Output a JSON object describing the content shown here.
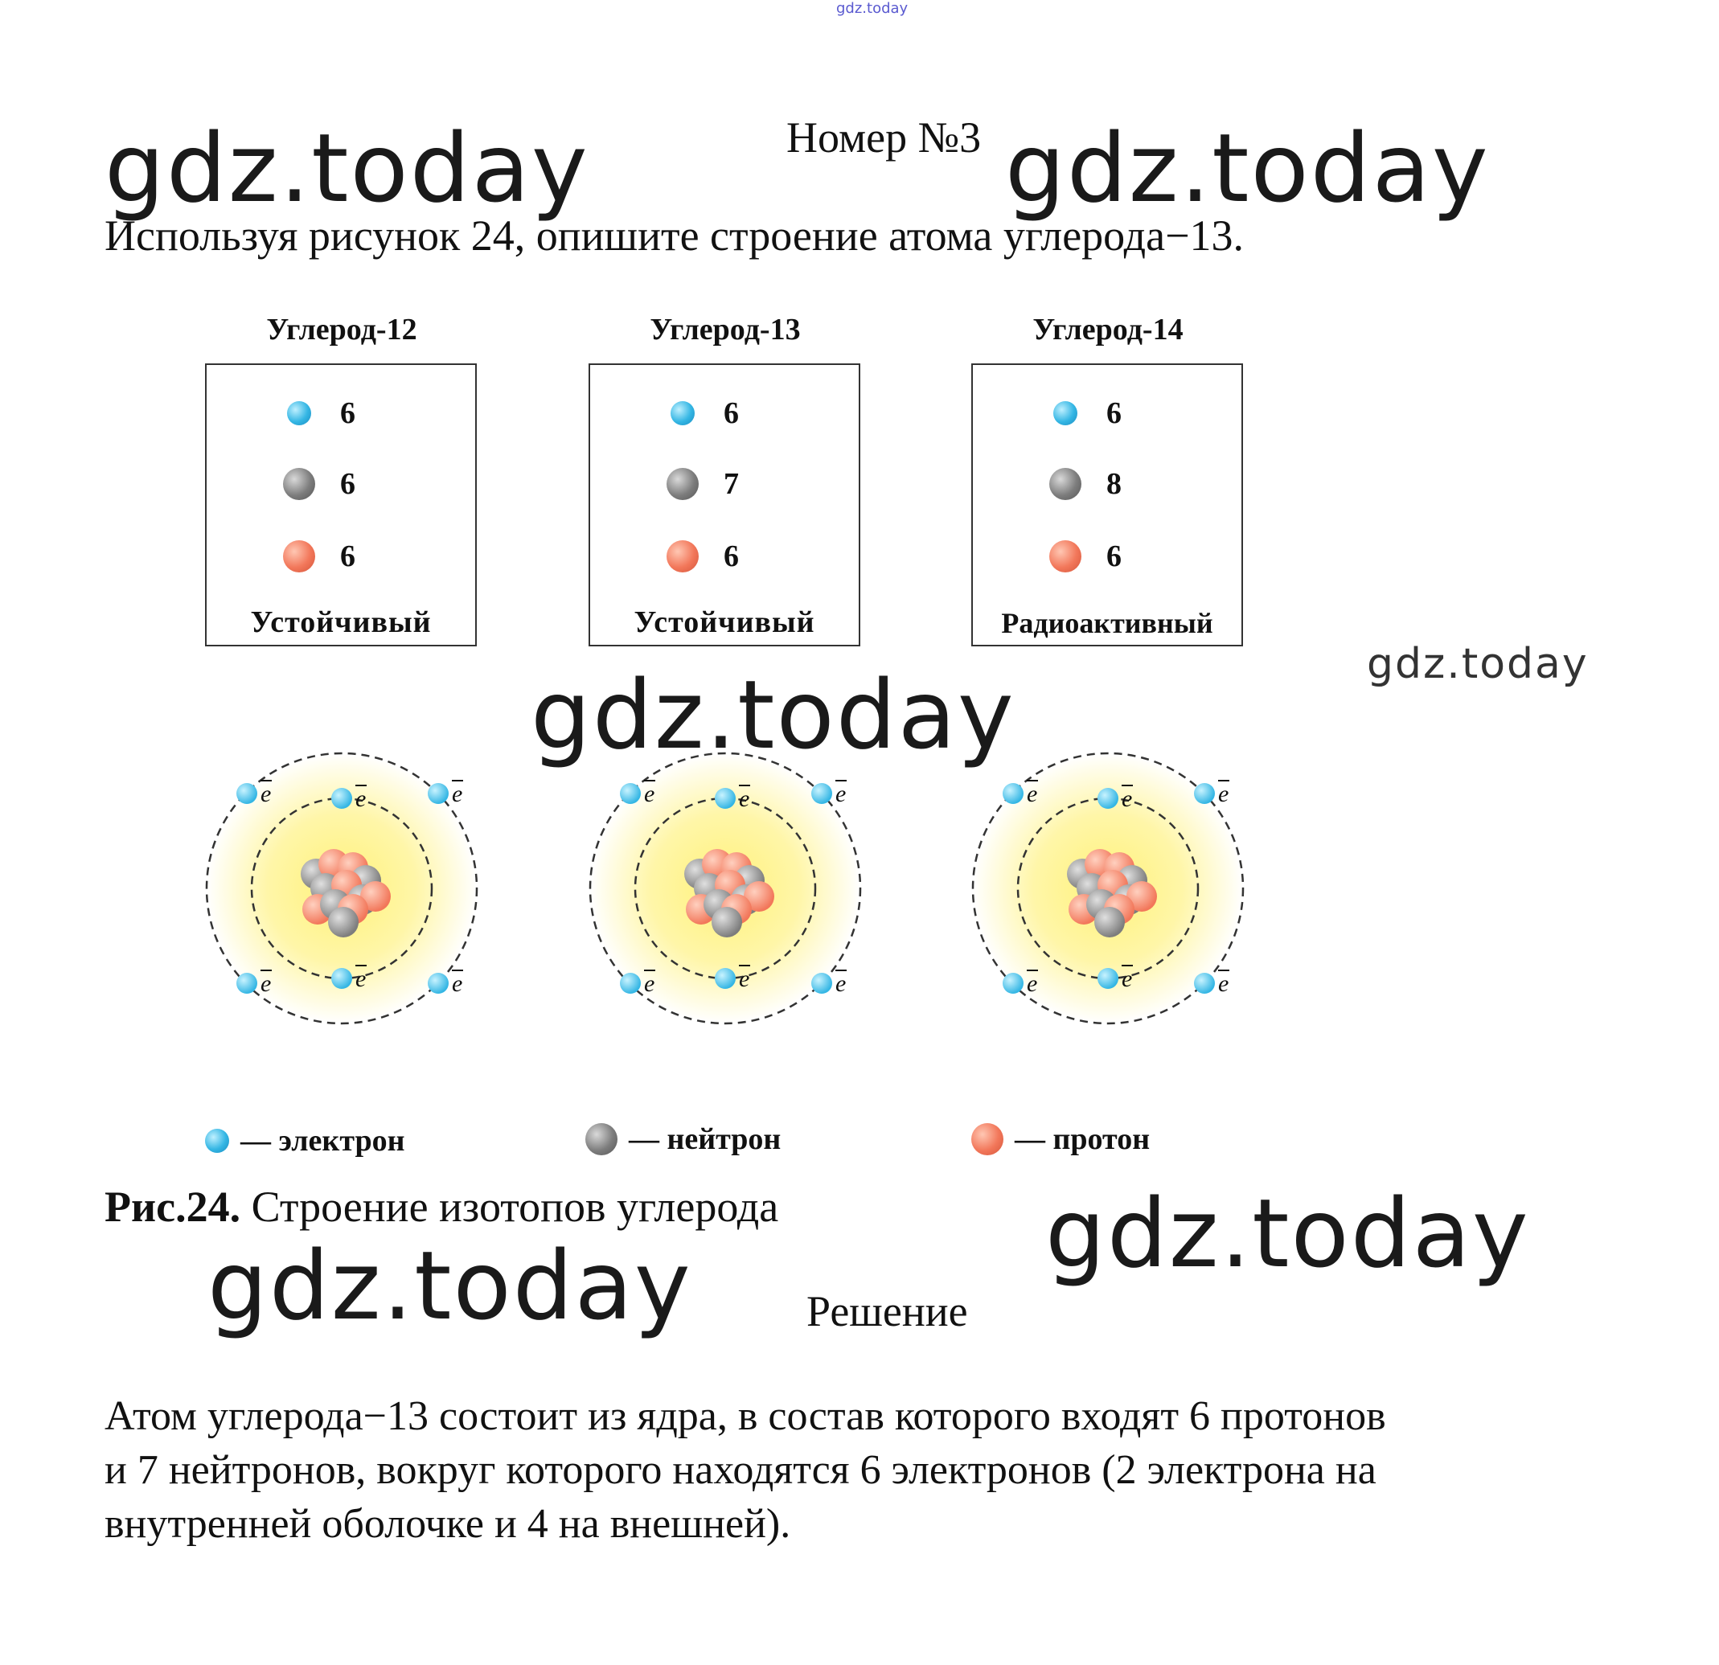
{
  "watermark": {
    "text": "gdz.today"
  },
  "header": {
    "number_label": "Номер №3"
  },
  "task": {
    "text": "Используя рисунок 24, опишите строение атома углерода−13."
  },
  "isotopes": [
    {
      "title": "Углерод-12",
      "electrons": "6",
      "neutrons": "6",
      "protons": "6",
      "stability": "Устойчивый"
    },
    {
      "title": "Углерод-13",
      "electrons": "6",
      "neutrons": "7",
      "protons": "6",
      "stability": "Устойчивый"
    },
    {
      "title": "Углерод-14",
      "electrons": "6",
      "neutrons": "8",
      "protons": "6",
      "stability": "Радиоактивный"
    }
  ],
  "electron_symbol": "e",
  "legend": {
    "electron": "— электрон",
    "neutron": "— нейтрон",
    "proton": "— протон"
  },
  "colors": {
    "electron": "#34b6e4",
    "neutron": "#7d7d7d",
    "proton": "#f2775a",
    "glow": "#fff6a8"
  },
  "figure": {
    "label": "Рис.24.",
    "caption": "Строение изотопов углерода"
  },
  "solution": {
    "heading": "Решение",
    "lines": [
      "Атом углерода−13 состоит из ядра, в состав которого входят 6 протонов",
      "и 7 нейтронов, вокруг которого находятся 6 электронов (2 электрона на",
      "внутренней оболочке и 4 на внешней)."
    ]
  }
}
